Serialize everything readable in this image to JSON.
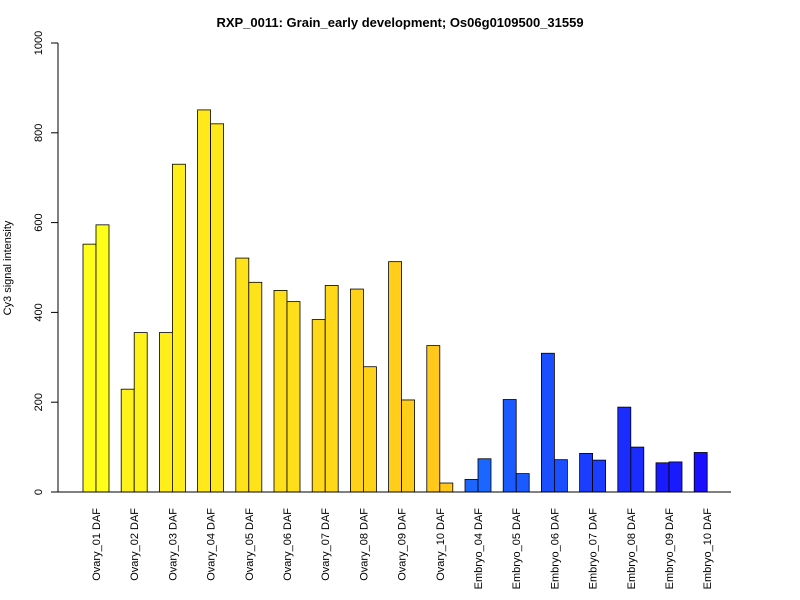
{
  "chart_data": {
    "type": "bar",
    "title": "RXP_0011: Grain_early development; Os06g0109500_31559",
    "xlabel": "",
    "ylabel": "Cy3 signal intensity",
    "ylim": [
      0,
      1000
    ],
    "yticks": [
      "0",
      "200",
      "400",
      "600",
      "800",
      "1000"
    ],
    "grid": false,
    "categories": [
      "Ovary_01 DAF",
      "Ovary_02 DAF",
      "Ovary_03 DAF",
      "Ovary_04 DAF",
      "Ovary_05 DAF",
      "Ovary_06 DAF",
      "Ovary_07 DAF",
      "Ovary_08 DAF",
      "Ovary_09 DAF",
      "Ovary_10 DAF",
      "Embryo_04 DAF",
      "Embryo_05 DAF",
      "Embryo_06 DAF",
      "Embryo_07 DAF",
      "Embryo_08 DAF",
      "Embryo_09 DAF",
      "Embryo_10 DAF"
    ],
    "colors": [
      "#ffff1a",
      "#fff21a",
      "#ffee1a",
      "#ffe91a",
      "#ffe31a",
      "#ffde1a",
      "#ffd81a",
      "#ffd21a",
      "#ffcd1a",
      "#ffc81a",
      "#1a66ff",
      "#1a5aff",
      "#1a4eff",
      "#1a3dff",
      "#1a2cff",
      "#1a1aff",
      "#1a10ff"
    ],
    "series": [
      {
        "values": [
          552,
          229,
          355,
          851,
          521,
          449,
          384,
          452,
          513,
          326,
          28,
          206,
          309,
          86,
          189,
          65,
          88
        ]
      },
      {
        "values": [
          595,
          355,
          730,
          820,
          467,
          424,
          460,
          279,
          205,
          20,
          74,
          41,
          72,
          71,
          100,
          67,
          0
        ]
      }
    ]
  }
}
